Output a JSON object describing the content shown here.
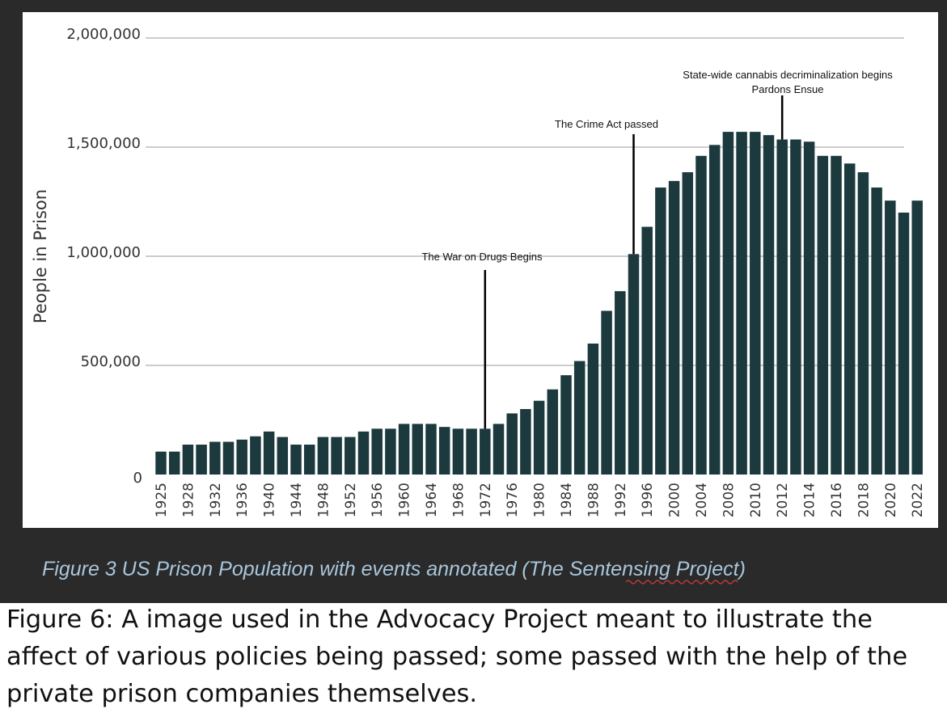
{
  "caption": "Figure 3 US Prison Population with events annotated (The Sentensing Project)",
  "description": "Figure 6: A image used in the Advocacy Project meant to illustrate the affect of various policies being passed; some passed with the help of the private prison companies themselves.",
  "colors": {
    "bar": "#1c3a3d",
    "frame": "#2a2a2a",
    "caption": "#a9c6dc",
    "grid": "#999999"
  },
  "chart_data": {
    "type": "bar",
    "title": "",
    "xlabel": "",
    "ylabel": "People in Prison",
    "ylim": [
      0,
      2000000
    ],
    "grid": true,
    "yticks": [
      0,
      500000,
      1000000,
      1500000,
      2000000
    ],
    "ytick_labels": [
      "0",
      "500,000",
      "1,000,000",
      "1,500,000",
      "2,000,000"
    ],
    "categories": [
      "1925",
      "1926",
      "1928",
      "1930",
      "1932",
      "1934",
      "1936",
      "1938",
      "1940",
      "1942",
      "1944",
      "1946",
      "1948",
      "1950",
      "1952",
      "1954",
      "1956",
      "1958",
      "1960",
      "1962",
      "1964",
      "1966",
      "1968",
      "1970",
      "1972",
      "1974",
      "1976",
      "1978",
      "1980",
      "1982",
      "1984",
      "1986",
      "1988",
      "1990",
      "1992",
      "1994",
      "1996",
      "1998",
      "2000",
      "2002",
      "2004",
      "2006",
      "2008",
      "2009",
      "2010",
      "2011",
      "2012",
      "2013",
      "2014",
      "2015",
      "2016",
      "2017",
      "2018",
      "2019",
      "2020",
      "2021",
      "2022"
    ],
    "tick_labels_shown": [
      "1925",
      "1928",
      "1932",
      "1936",
      "1940",
      "1944",
      "1948",
      "1952",
      "1956",
      "1960",
      "1964",
      "1968",
      "1972",
      "1976",
      "1980",
      "1984",
      "1988",
      "1992",
      "1996",
      "2000",
      "2004",
      "2008",
      "2010",
      "2012",
      "2014",
      "2016",
      "2018",
      "2020",
      "2022"
    ],
    "values": [
      105000,
      105000,
      137000,
      137000,
      150000,
      150000,
      160000,
      175000,
      197000,
      172000,
      137000,
      137000,
      172000,
      172000,
      172000,
      197000,
      210000,
      210000,
      232000,
      232000,
      232000,
      218000,
      210000,
      210000,
      210000,
      232000,
      280000,
      300000,
      338000,
      390000,
      455000,
      520000,
      600000,
      750000,
      840000,
      1010000,
      1135000,
      1315000,
      1345000,
      1385000,
      1460000,
      1510000,
      1570000,
      1570000,
      1570000,
      1555000,
      1535000,
      1535000,
      1525000,
      1460000,
      1460000,
      1425000,
      1385000,
      1315000,
      1255000,
      1200000,
      1255000
    ],
    "annotations": [
      {
        "category": "1972",
        "lines": [
          "The War on Drugs Begins"
        ]
      },
      {
        "category": "1994",
        "lines": [
          "The Crime Act passed"
        ]
      },
      {
        "category": "2012",
        "lines": [
          "State-wide cannabis decriminalization begins",
          "Pardons Ensue"
        ]
      }
    ]
  }
}
